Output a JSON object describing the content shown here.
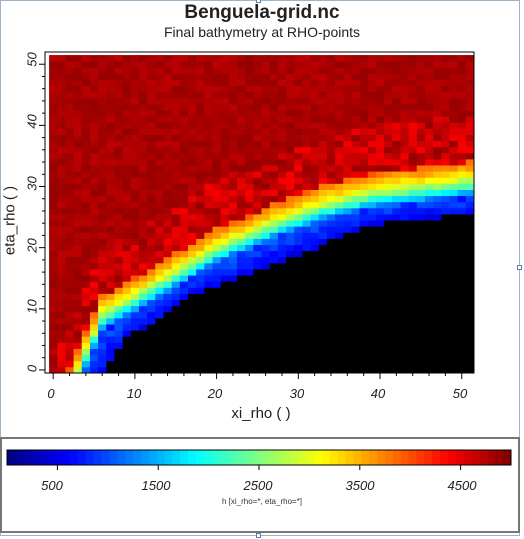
{
  "title": "Benguela-grid.nc",
  "subtitle": "Final bathymetry at RHO-points",
  "chart_data": {
    "type": "heatmap",
    "title": "Benguela-grid.nc",
    "subtitle": "Final bathymetry at RHO-points",
    "xlabel": "xi_rho ( )",
    "ylabel": "eta_rho ( )",
    "xlim": [
      -1,
      51.5
    ],
    "ylim": [
      -0.5,
      52
    ],
    "xticks": [
      "0",
      "10",
      "20",
      "30",
      "40",
      "50"
    ],
    "yticks": [
      "0",
      "10",
      "20",
      "30",
      "40",
      "50"
    ],
    "colorbar": {
      "label": "h [xi_rho=*, eta_rho=*]",
      "range": [
        0,
        5000
      ],
      "ticks": [
        "500",
        "1500",
        "2500",
        "3500",
        "4500"
      ],
      "colormap": "jet"
    },
    "land_color": "#000000",
    "description_values": {
      "deep_ocean_value": 4900,
      "shelf_value": 500,
      "shelf_edge_points": [
        [
          4,
          0
        ],
        [
          6,
          6
        ],
        [
          10,
          9
        ],
        [
          15,
          13
        ],
        [
          20,
          17
        ],
        [
          27,
          21
        ],
        [
          33,
          24
        ],
        [
          39,
          26
        ],
        [
          45,
          27
        ],
        [
          51,
          28
        ]
      ],
      "land_boundary_points": [
        [
          6,
          0
        ],
        [
          9,
          6
        ],
        [
          12,
          8
        ],
        [
          17,
          13
        ],
        [
          22,
          15
        ],
        [
          27,
          18
        ],
        [
          33,
          21
        ],
        [
          38,
          24
        ],
        [
          43,
          25
        ],
        [
          51,
          26
        ]
      ]
    }
  }
}
